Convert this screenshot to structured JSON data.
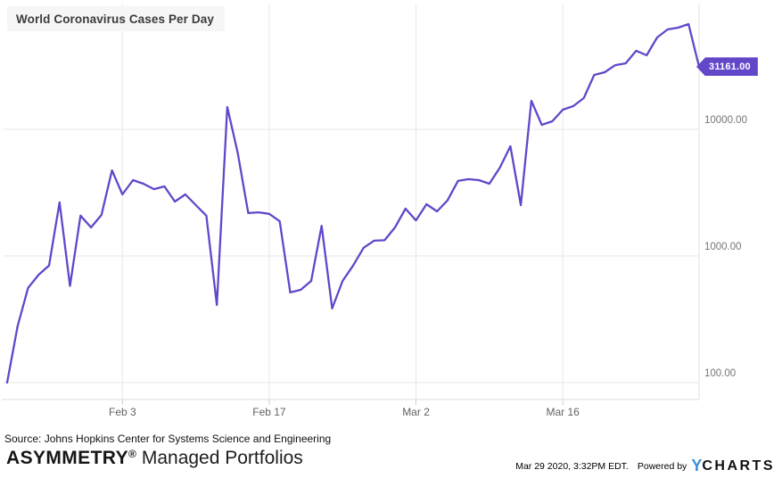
{
  "chart": {
    "title": "World Coronavirus Cases Per Day"
  },
  "chart_data": {
    "type": "line",
    "title": "World Coronavirus Cases Per Day",
    "yscale": "log",
    "ylim": [
      90,
      100000
    ],
    "grid": true,
    "legend": false,
    "line_color": "#6247c9",
    "last_value_label": "31161.00",
    "ytick_values": [
      100,
      1000,
      10000
    ],
    "ytick_labels": [
      "100.00",
      "1000.00",
      "10000.00"
    ],
    "xtick_labels": [
      "Feb 3",
      "Feb 17",
      "Mar 2",
      "Mar 16"
    ],
    "xtick_indices": [
      11,
      25,
      39,
      53
    ],
    "x": [
      "Jan 23",
      "Jan 24",
      "Jan 25",
      "Jan 26",
      "Jan 27",
      "Jan 28",
      "Jan 29",
      "Jan 30",
      "Jan 31",
      "Feb 1",
      "Feb 2",
      "Feb 3",
      "Feb 4",
      "Feb 5",
      "Feb 6",
      "Feb 7",
      "Feb 8",
      "Feb 9",
      "Feb 10",
      "Feb 11",
      "Feb 12",
      "Feb 13",
      "Feb 14",
      "Feb 15",
      "Feb 16",
      "Feb 17",
      "Feb 18",
      "Feb 19",
      "Feb 20",
      "Feb 21",
      "Feb 22",
      "Feb 23",
      "Feb 24",
      "Feb 25",
      "Feb 26",
      "Feb 27",
      "Feb 28",
      "Feb 29",
      "Mar 1",
      "Mar 2",
      "Mar 3",
      "Mar 4",
      "Mar 5",
      "Mar 6",
      "Mar 7",
      "Mar 8",
      "Mar 9",
      "Mar 10",
      "Mar 11",
      "Mar 12",
      "Mar 13",
      "Mar 14",
      "Mar 15",
      "Mar 16",
      "Mar 17",
      "Mar 18",
      "Mar 19",
      "Mar 20",
      "Mar 21",
      "Mar 22",
      "Mar 23",
      "Mar 24",
      "Mar 25",
      "Mar 26",
      "Mar 27",
      "Mar 28",
      "Mar 29"
    ],
    "values": [
      100,
      280,
      560,
      710,
      840,
      2650,
      580,
      2080,
      1680,
      2110,
      4740,
      3060,
      3970,
      3720,
      3370,
      3540,
      2690,
      3060,
      2520,
      2080,
      410,
      15000,
      6460,
      2180,
      2210,
      2150,
      1880,
      515,
      540,
      635,
      1730,
      385,
      635,
      840,
      1160,
      1320,
      1330,
      1680,
      2360,
      1910,
      2560,
      2250,
      2740,
      3910,
      4040,
      3970,
      3720,
      4980,
      7350,
      2520,
      16800,
      10850,
      11570,
      14290,
      15240,
      17640,
      26900,
      28240,
      32100,
      33200,
      41700,
      38400,
      53100,
      61500,
      63500,
      67800,
      31161
    ]
  },
  "footer": {
    "source": "Source: Johns Hopkins Center for Systems Science and Engineering",
    "brand_name": "ASYMMETRY",
    "brand_reg": "®",
    "brand_suffix": "Managed Portfolios",
    "timestamp": "Mar 29 2020, 3:32PM EDT.",
    "powered_by": "Powered by",
    "ycharts_y": "Y",
    "ycharts_rest": "CHARTS",
    "ycharts_y_color": "#3d8fd6"
  },
  "colors": {
    "accent_purple": "#6247c9",
    "gridline": "#e7e7e7",
    "title_box_bg": "#f6f6f6"
  }
}
